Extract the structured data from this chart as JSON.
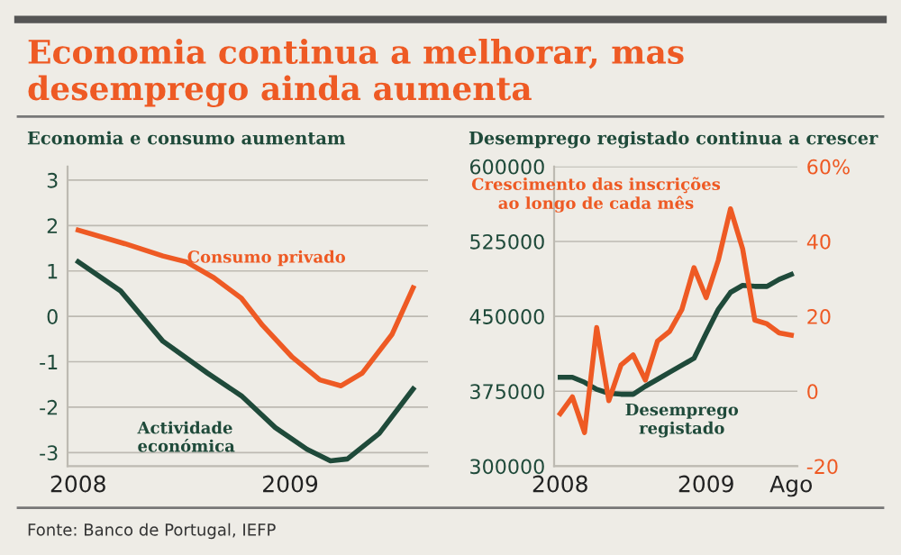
{
  "chart_data": [
    {
      "type": "line",
      "title": "Economia continua a melhorar, mas desemprego ainda aumenta",
      "subtitle": "Economia e consumo aumentam",
      "x": [
        2008.0,
        2008.2,
        2008.4,
        2008.61,
        2008.77,
        2008.93,
        2009.08,
        2009.19,
        2009.27,
        2009.42,
        2009.58
      ],
      "series": [
        {
          "name": "Consumo privado",
          "color": "#ee5a24",
          "x": [
            2008.0,
            2008.22,
            2008.4,
            2008.51,
            2008.64,
            2008.77,
            2008.87,
            2009.01,
            2009.14,
            2009.24,
            2009.34,
            2009.48,
            2009.58
          ],
          "values": [
            1.9,
            1.6,
            1.33,
            1.2,
            0.85,
            0.4,
            -0.2,
            -0.9,
            -1.4,
            -1.53,
            -1.25,
            -0.4,
            0.63
          ]
        },
        {
          "name": "Actividade económica",
          "color": "#1f4a3a",
          "values": [
            1.2,
            0.56,
            -0.55,
            -1.25,
            -1.75,
            -2.45,
            -2.93,
            -3.18,
            -3.14,
            -2.58,
            -1.6
          ]
        }
      ],
      "xlim": [
        2007.95,
        2009.65
      ],
      "xticks": [
        2008,
        2009
      ],
      "ylim": [
        -3.3,
        3.3
      ],
      "yticks": [
        -3,
        -2,
        -1,
        0,
        1,
        2,
        3
      ],
      "grid": "y",
      "legend": false,
      "annotations": [
        "Fonte: Banco de Portugal, IEFP"
      ]
    },
    {
      "type": "line",
      "title": "Desemprego registado continua a crescer",
      "categories": [
        "2008",
        null,
        null,
        null,
        null,
        null,
        null,
        null,
        null,
        null,
        null,
        null,
        "2009",
        null,
        null,
        null,
        null,
        null,
        null,
        "Ago"
      ],
      "series": [
        {
          "name": "Desemprego registado",
          "color": "#1f4a3a",
          "values": [
            389000,
            389000,
            384000,
            377000,
            373000,
            372000,
            372000,
            380000,
            387000,
            394000,
            401000,
            408000,
            433000,
            457000,
            474000,
            481000,
            480000,
            480000,
            487000,
            492000
          ]
        },
        {
          "name": "Crescimento das inscrições ao longo de cada mês",
          "color": "#ee5a24",
          "axis": "y2",
          "values": [
            -6,
            -1.5,
            -11,
            17,
            -2.5,
            7,
            9.7,
            3,
            13.4,
            16,
            21.8,
            33,
            25,
            35,
            48.7,
            38,
            19,
            18,
            15.6,
            15
          ]
        }
      ],
      "ylim": [
        300000,
        600000
      ],
      "yticks": [
        300000,
        375000,
        450000,
        525000,
        600000
      ],
      "y2lim": [
        -20,
        60
      ],
      "y2ticks": [
        -20,
        0,
        20,
        40,
        {
          "value": 60,
          "label": "60%"
        }
      ],
      "grid": "y",
      "legend": false
    }
  ]
}
